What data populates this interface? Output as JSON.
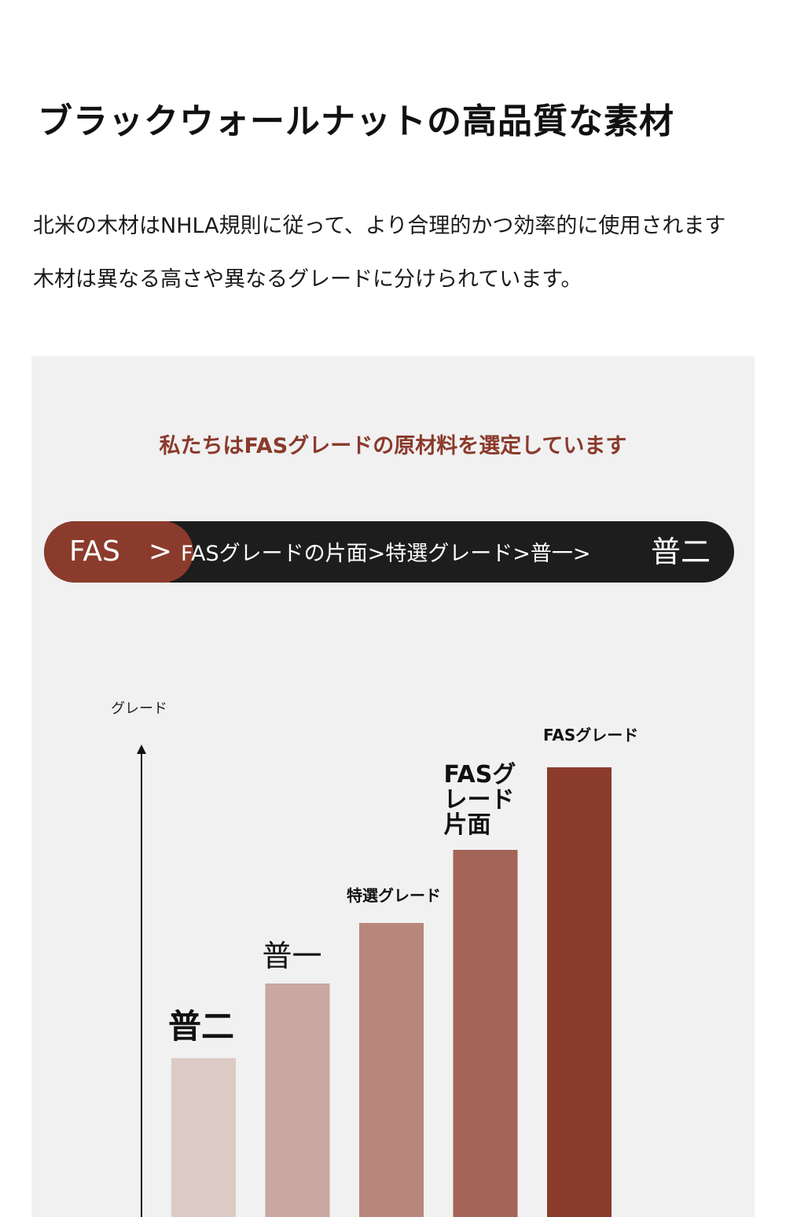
{
  "header": {
    "title": "ブラックウォールナットの高品質な素材"
  },
  "intro": {
    "line1": "北米の木材はNHLA規則に従って、より合理的かつ効率的に使用されます",
    "line2": "木材は異なる高さや異なるグレードに分けられています。"
  },
  "panel": {
    "subtitle": "私たちはFASグレードの原材料を選定しています",
    "ranking": {
      "first": "FAS　>",
      "middle": "FASグレードの片面>特選グレード>普一>",
      "last": "普二"
    }
  },
  "chart_data": {
    "type": "bar",
    "ylabel": "グレード",
    "categories": [
      "普二",
      "普一",
      "特選グレード",
      "FASグレード片面",
      "FASグレード"
    ],
    "values": [
      1,
      2,
      3,
      4,
      5
    ],
    "colors": [
      "#dbcbc4",
      "#c8a8a0",
      "#b8867a",
      "#a46457",
      "#8b3b2c"
    ],
    "grid": false
  }
}
